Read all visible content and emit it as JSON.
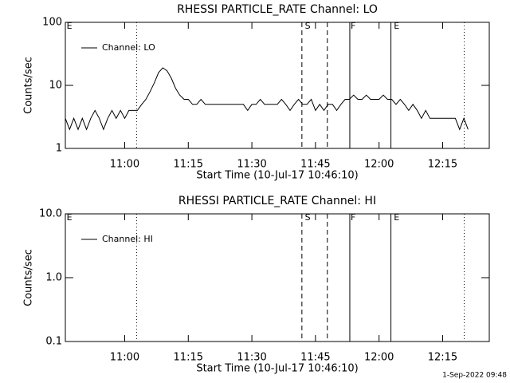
{
  "chart_data": [
    {
      "type": "line",
      "title": "RHESSI PARTICLE_RATE Channel: LO",
      "xlabel": "Start Time (10-Jul-17 10:46:10)",
      "ylabel": "Counts/sec",
      "ylog": true,
      "ylim": [
        1,
        100
      ],
      "yticks": [
        1,
        10,
        100
      ],
      "xlim": [
        646,
        746
      ],
      "xticks": [
        {
          "value": 660,
          "label": "11:00"
        },
        {
          "value": 675,
          "label": "11:15"
        },
        {
          "value": 690,
          "label": "11:30"
        },
        {
          "value": 705,
          "label": "11:45"
        },
        {
          "value": 720,
          "label": "12:00"
        },
        {
          "value": 735,
          "label": "12:15"
        }
      ],
      "markers": [
        {
          "x": 662.8,
          "style": "dotted"
        },
        {
          "x": 701.8,
          "style": "dashed"
        },
        {
          "x": 707.8,
          "style": "dashed"
        },
        {
          "x": 713.1,
          "style": "solid"
        },
        {
          "x": 722.8,
          "style": "solid"
        },
        {
          "x": 740.1,
          "style": "dotted"
        }
      ],
      "flags": [
        {
          "label": "E",
          "x": 646.3
        },
        {
          "label": "S",
          "x": 702.5
        },
        {
          "label": "F",
          "x": 713.3
        },
        {
          "label": "E",
          "x": 723.5
        }
      ],
      "legend": "upper left",
      "x": [
        646,
        647,
        648,
        649,
        650,
        651,
        652,
        653,
        654,
        655,
        656,
        657,
        658,
        659,
        660,
        661,
        662,
        663,
        664,
        665,
        666,
        667,
        668,
        669,
        670,
        671,
        672,
        673,
        674,
        675,
        676,
        677,
        678,
        679,
        680,
        681,
        682,
        683,
        684,
        685,
        686,
        687,
        688,
        689,
        690,
        691,
        692,
        693,
        694,
        695,
        696,
        697,
        698,
        699,
        700,
        701,
        702,
        703,
        704,
        705,
        706,
        707,
        708,
        709,
        710,
        711,
        712,
        713,
        714,
        715,
        716,
        717,
        718,
        719,
        720,
        721,
        722,
        723,
        724,
        725,
        726,
        727,
        728,
        729,
        730,
        731,
        732,
        733,
        734,
        735,
        736,
        737,
        738,
        739,
        740,
        741
      ],
      "series": [
        {
          "name": "Channel: LO",
          "color": "#000000",
          "values": [
            3,
            2,
            3,
            2,
            3,
            2,
            3,
            4,
            3,
            2,
            3,
            4,
            3,
            4,
            3,
            4,
            4,
            4,
            5,
            6,
            8,
            11,
            16,
            19,
            17,
            13,
            9,
            7,
            6,
            6,
            5,
            5,
            6,
            5,
            5,
            5,
            5,
            5,
            5,
            5,
            5,
            5,
            5,
            4,
            5,
            5,
            6,
            5,
            5,
            5,
            5,
            6,
            5,
            4,
            5,
            6,
            5,
            5,
            6,
            4,
            5,
            4,
            5,
            5,
            4,
            5,
            6,
            6,
            7,
            6,
            6,
            7,
            6,
            6,
            6,
            7,
            6,
            6,
            5,
            6,
            5,
            4,
            5,
            4,
            3,
            4,
            3,
            3,
            3,
            3,
            3,
            3,
            3,
            2,
            3,
            2
          ]
        }
      ]
    },
    {
      "type": "line",
      "title": "RHESSI PARTICLE_RATE Channel: HI",
      "xlabel": "Start Time (10-Jul-17 10:46:10)",
      "ylabel": "Counts/sec",
      "ylog": true,
      "ylim": [
        0.1,
        10
      ],
      "yticks": [
        0.1,
        {
          "value": 1,
          "label": "1.0"
        },
        {
          "value": 10,
          "label": "10.0"
        }
      ],
      "xlim": [
        646,
        746
      ],
      "xticks": [
        {
          "value": 660,
          "label": "11:00"
        },
        {
          "value": 675,
          "label": "11:15"
        },
        {
          "value": 690,
          "label": "11:30"
        },
        {
          "value": 705,
          "label": "11:45"
        },
        {
          "value": 720,
          "label": "12:00"
        },
        {
          "value": 735,
          "label": "12:15"
        }
      ],
      "markers": [
        {
          "x": 662.8,
          "style": "dotted"
        },
        {
          "x": 701.8,
          "style": "dashed"
        },
        {
          "x": 707.8,
          "style": "dashed"
        },
        {
          "x": 713.1,
          "style": "solid"
        },
        {
          "x": 722.8,
          "style": "solid"
        },
        {
          "x": 740.1,
          "style": "dotted"
        }
      ],
      "flags": [
        {
          "label": "E",
          "x": 646.3
        },
        {
          "label": "S",
          "x": 702.5
        },
        {
          "label": "F",
          "x": 713.3
        },
        {
          "label": "E",
          "x": 723.5
        }
      ],
      "legend": "upper left",
      "x": [],
      "series": [
        {
          "name": "Channel: HI",
          "color": "#000000",
          "values": []
        }
      ]
    }
  ],
  "footer": "1-Sep-2022 09:48"
}
